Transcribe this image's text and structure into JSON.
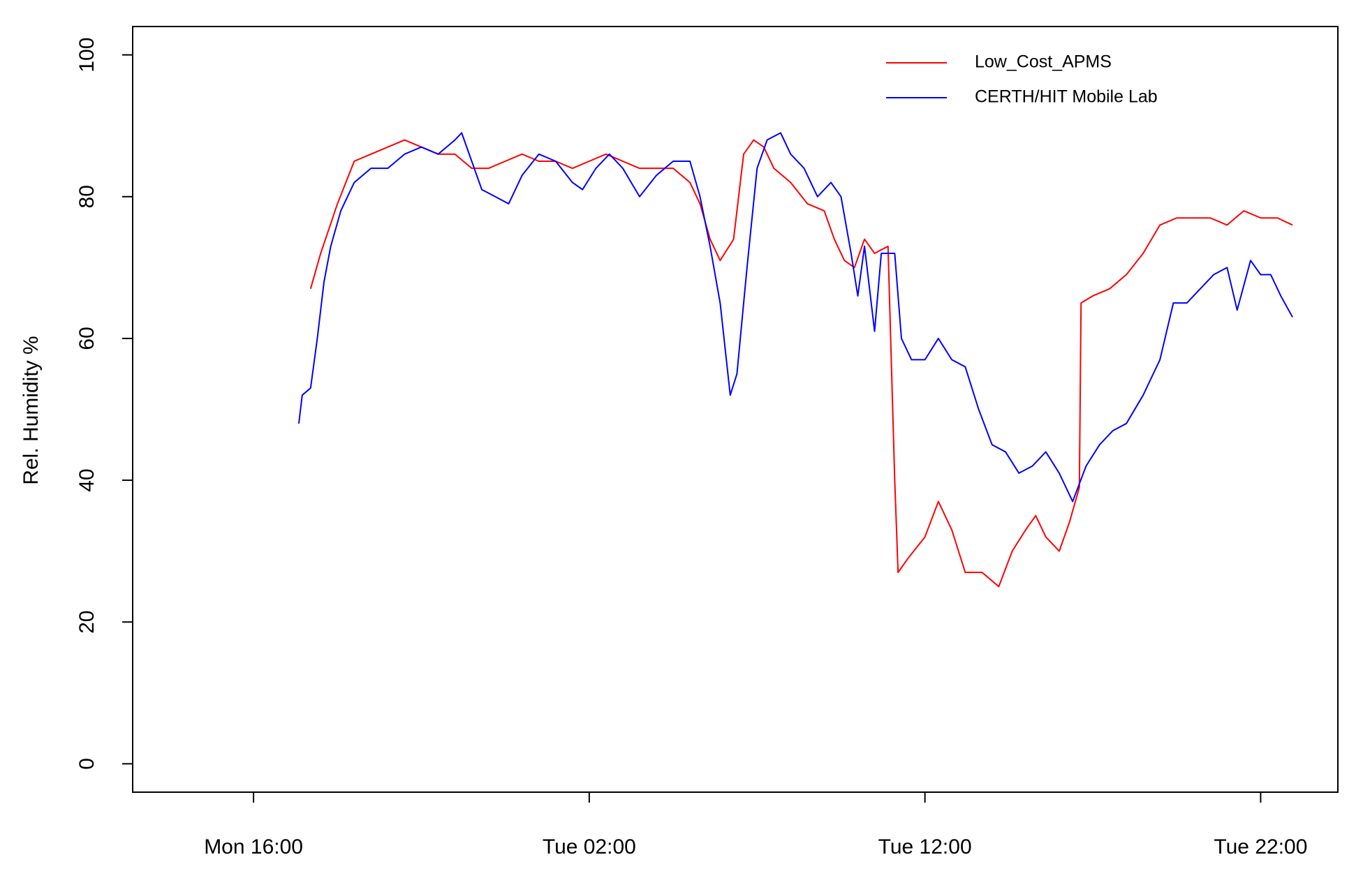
{
  "chart_data": {
    "type": "line",
    "y_label": "Rel. Humidity %",
    "xlim": [
      12.4,
      48.3
    ],
    "xticks": [
      {
        "value": 16,
        "label": "Mon 16:00"
      },
      {
        "value": 26,
        "label": "Tue 02:00"
      },
      {
        "value": 36,
        "label": "Tue 12:00"
      },
      {
        "value": 46,
        "label": "Tue 22:00"
      }
    ],
    "ylim": [
      -4,
      104
    ],
    "yticks": [
      0,
      20,
      40,
      60,
      80,
      100
    ],
    "legend": "top-right",
    "series": [
      {
        "name": "Low_Cost_APMS",
        "color": "#ff0000",
        "x": [
          17.7,
          18.0,
          18.5,
          19.0,
          19.5,
          20.0,
          20.5,
          21.0,
          21.5,
          22.0,
          22.5,
          23.0,
          23.5,
          24.0,
          24.5,
          25.0,
          25.5,
          26.0,
          26.5,
          27.0,
          27.5,
          28.0,
          28.5,
          29.0,
          29.3,
          29.6,
          29.9,
          30.3,
          30.6,
          30.9,
          31.2,
          31.5,
          32.0,
          32.5,
          33.0,
          33.3,
          33.6,
          33.9,
          34.2,
          34.5,
          34.9,
          35.1,
          35.2,
          35.5,
          36.0,
          36.4,
          36.8,
          37.2,
          37.7,
          38.2,
          38.6,
          39.0,
          39.3,
          39.6,
          40.0,
          40.3,
          40.6,
          40.65,
          41.0,
          41.5,
          42.0,
          42.5,
          43.0,
          43.5,
          44.0,
          44.5,
          45.0,
          45.5,
          46.0,
          46.5,
          46.95
        ],
        "values": [
          67,
          72,
          79,
          85,
          86,
          87,
          88,
          87,
          86,
          86,
          84,
          84,
          85,
          86,
          85,
          85,
          84,
          85,
          86,
          85,
          84,
          84,
          84,
          82,
          79,
          74,
          71,
          74,
          86,
          88,
          87,
          84,
          82,
          79,
          78,
          74,
          71,
          70,
          74,
          72,
          73,
          40,
          27,
          29,
          32,
          37,
          33,
          27,
          27,
          25,
          30,
          33,
          35,
          32,
          30,
          34,
          39,
          65,
          66,
          67,
          69,
          72,
          76,
          77,
          77,
          77,
          76,
          78,
          77,
          77,
          76
        ]
      },
      {
        "name": "CERTH/HIT Mobile Lab",
        "color": "#0000ff",
        "x": [
          17.35,
          17.45,
          17.7,
          17.9,
          18.1,
          18.3,
          18.6,
          19.0,
          19.5,
          20.0,
          20.5,
          21.0,
          21.5,
          22.0,
          22.2,
          22.5,
          22.8,
          23.2,
          23.6,
          24.0,
          24.5,
          25.0,
          25.5,
          25.8,
          26.2,
          26.6,
          27.0,
          27.5,
          28.0,
          28.5,
          29.0,
          29.3,
          29.6,
          29.9,
          30.2,
          30.4,
          30.7,
          31.0,
          31.3,
          31.7,
          32.0,
          32.4,
          32.8,
          33.2,
          33.5,
          33.8,
          34.0,
          34.2,
          34.5,
          34.7,
          35.1,
          35.3,
          35.6,
          36.0,
          36.4,
          36.8,
          37.2,
          37.6,
          38.0,
          38.4,
          38.8,
          39.2,
          39.6,
          40.0,
          40.4,
          40.8,
          41.2,
          41.6,
          42.0,
          42.5,
          43.0,
          43.4,
          43.8,
          44.2,
          44.6,
          45.0,
          45.3,
          45.7,
          46.0,
          46.3,
          46.6,
          46.95
        ],
        "values": [
          48,
          52,
          53,
          60,
          68,
          73,
          78,
          82,
          84,
          84,
          86,
          87,
          86,
          88,
          89,
          85,
          81,
          80,
          79,
          83,
          86,
          85,
          82,
          81,
          84,
          86,
          84,
          80,
          83,
          85,
          85,
          80,
          73,
          65,
          52,
          55,
          70,
          84,
          88,
          89,
          86,
          84,
          80,
          82,
          80,
          72,
          66,
          73,
          61,
          72,
          72,
          60,
          57,
          57,
          60,
          57,
          56,
          50,
          45,
          44,
          41,
          42,
          44,
          41,
          37,
          42,
          45,
          47,
          48,
          52,
          57,
          65,
          65,
          67,
          69,
          70,
          64,
          71,
          69,
          69,
          66,
          63
        ]
      }
    ]
  }
}
